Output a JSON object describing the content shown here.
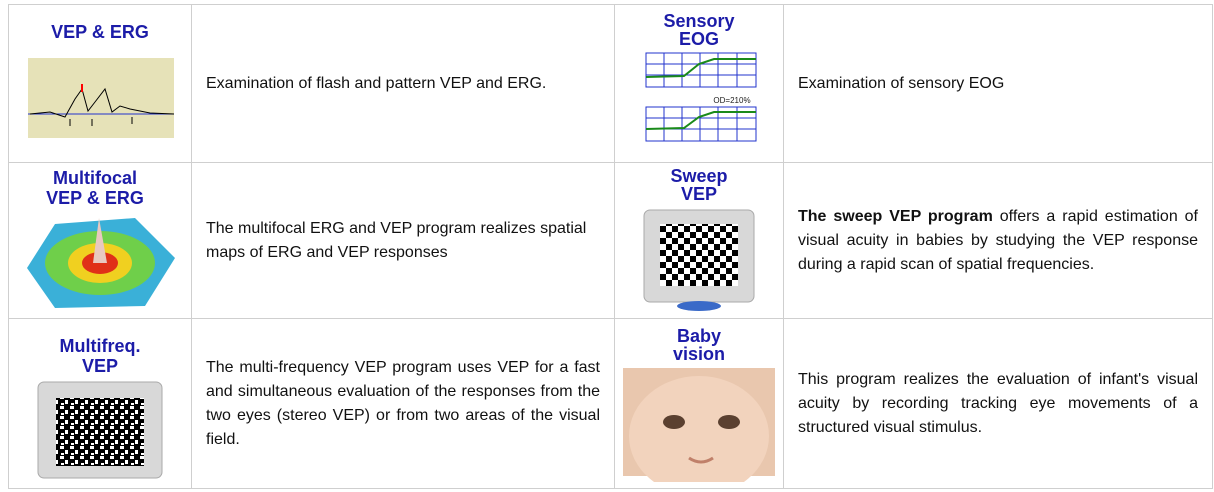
{
  "table": {
    "rows": [
      [
        {
          "icon_title": [
            "VEP & ERG"
          ],
          "description": "Examination of flash and pattern VEP and ERG."
        },
        {
          "icon_title": [
            "Sensory",
            "EOG"
          ],
          "icon_note": "OD=210%",
          "description": "Examination of sensory EOG"
        }
      ],
      [
        {
          "icon_title": [
            "Multifocal",
            "VEP & ERG"
          ],
          "description": "The multifocal ERG and VEP program realizes spatial maps of ERG and VEP responses"
        },
        {
          "icon_title": [
            "Sweep",
            "VEP"
          ],
          "description_bold": "The sweep VEP program",
          "description": "offers a rapid estimation of visual acuity in babies by studying the VEP response during a rapid scan of spatial frequencies."
        }
      ],
      [
        {
          "icon_title": [
            "Multifreq.",
            "VEP"
          ],
          "description": "The multi-frequency VEP program uses VEP for a fast and simultaneous evaluation of the responses from the two eyes (stereo VEP) or from two areas of the visual field."
        },
        {
          "icon_title": [
            "Baby",
            "vision"
          ],
          "description": "This program realizes the evaluation of infant's visual acuity by recording tracking eye movements of a structured visual stimulus."
        }
      ]
    ]
  }
}
